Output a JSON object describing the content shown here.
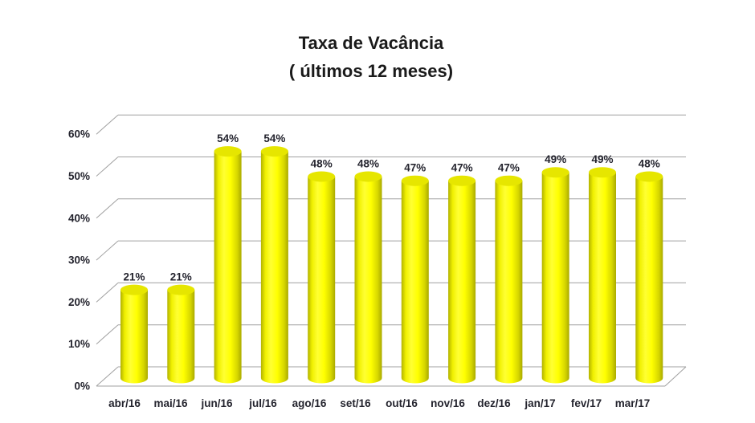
{
  "chart_data": {
    "type": "bar",
    "subtype": "3d-cylinder",
    "title": "Taxa de Vacância",
    "subtitle": "( últimos 12 meses)",
    "categories": [
      "abr/16",
      "mai/16",
      "jun/16",
      "jul/16",
      "ago/16",
      "set/16",
      "out/16",
      "nov/16",
      "dez/16",
      "jan/17",
      "fev/17",
      "mar/17"
    ],
    "values": [
      21,
      21,
      54,
      54,
      48,
      48,
      47,
      47,
      47,
      49,
      49,
      48
    ],
    "value_labels": [
      "21%",
      "21%",
      "54%",
      "54%",
      "48%",
      "48%",
      "47%",
      "47%",
      "47%",
      "49%",
      "49%",
      "48%"
    ],
    "y_ticks": [
      "0%",
      "10%",
      "20%",
      "30%",
      "40%",
      "50%",
      "60%"
    ],
    "ylim": [
      0,
      60
    ],
    "grid": true,
    "legend": "none",
    "colors": {
      "bar_fill": "#ffff00",
      "bar_top": "#e6e600",
      "bar_edge": "#b2b200",
      "gridline": "#a0a0a0",
      "axis_text": "#24242e",
      "title_text": "#1a1a1a",
      "background": "#ffffff"
    }
  }
}
